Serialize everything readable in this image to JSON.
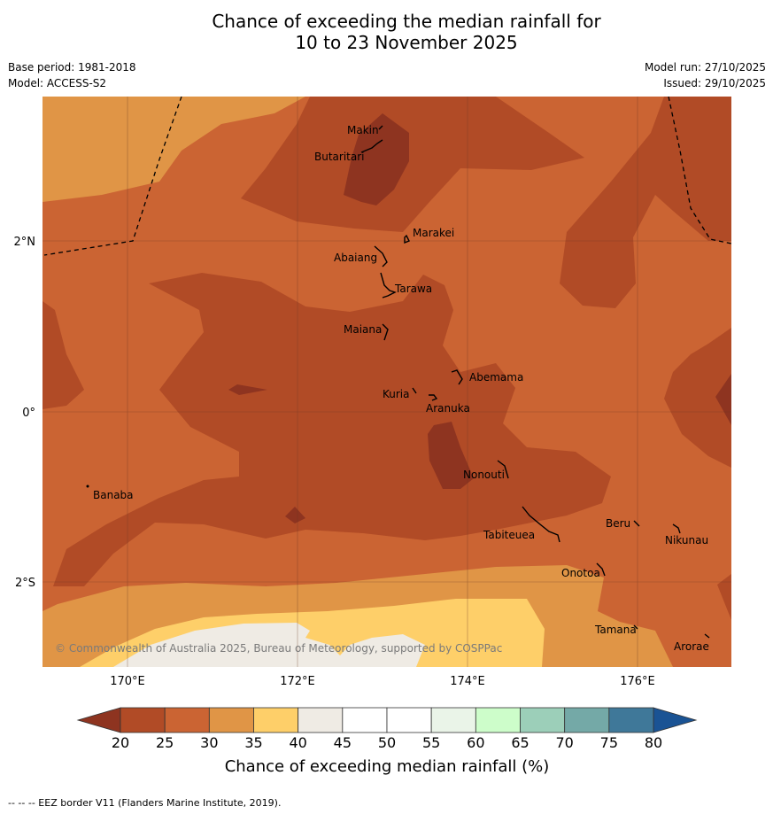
{
  "title": {
    "line1": "Chance of exceeding the median rainfall for",
    "line2": "10 to 23 November 2025"
  },
  "meta": {
    "base_period": "Base period: 1981-2018",
    "model": "Model: ACCESS-S2",
    "model_run": "Model run: 27/10/2025",
    "issued": "Issued: 29/10/2025"
  },
  "axes": {
    "x_ticks": [
      "170°E",
      "172°E",
      "174°E",
      "176°E"
    ],
    "y_ticks": [
      "2°N",
      "0°",
      "2°S"
    ]
  },
  "places": [
    "Makin",
    "Butaritari",
    "Marakei",
    "Abaiang",
    "Tarawa",
    "Maiana",
    "Abemama",
    "Kuria",
    "Aranuka",
    "Nonouti",
    "Banaba",
    "Tabiteuea",
    "Beru",
    "Nikunau",
    "Onotoa",
    "Tamana",
    "Arorae"
  ],
  "copyright": "© Commonwealth of Australia 2025, Bureau of Meteorology, supported by COSPPac",
  "colorbar": {
    "title": "Chance of exceeding median rainfall (%)",
    "ticks": [
      "20",
      "25",
      "30",
      "35",
      "40",
      "45",
      "50",
      "55",
      "60",
      "65",
      "70",
      "75",
      "80"
    ],
    "colors": {
      "below": "#8e3420",
      "bins": [
        "#b14b26",
        "#cb6433",
        "#e09546",
        "#fecf69",
        "#efebe4",
        "#ffffff",
        "#ffffff",
        "#eaf4e8",
        "#cdfdca",
        "#9ccfb9",
        "#74a9a7",
        "#3f7899"
      ],
      "above": "#1a5394"
    }
  },
  "footer": "-- -- -- EEZ border V11 (Flanders Marine Institute, 2019)."
}
